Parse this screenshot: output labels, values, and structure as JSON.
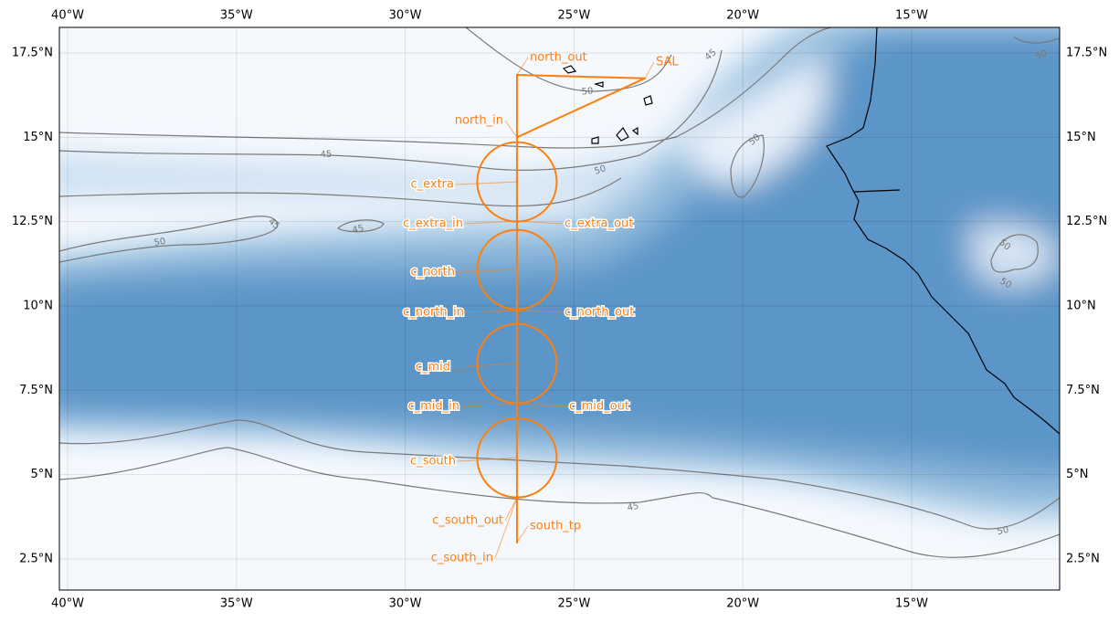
{
  "map": {
    "lon_ticks": [
      {
        "value": -40,
        "label": "40°W"
      },
      {
        "value": -35,
        "label": "35°W"
      },
      {
        "value": -30,
        "label": "30°W"
      },
      {
        "value": -25,
        "label": "25°W"
      },
      {
        "value": -20,
        "label": "20°W"
      },
      {
        "value": -15,
        "label": "15°W"
      }
    ],
    "lat_ticks": [
      {
        "value": 2.5,
        "label": "2.5°N"
      },
      {
        "value": 5,
        "label": "5°N"
      },
      {
        "value": 7.5,
        "label": "7.5°N"
      },
      {
        "value": 10,
        "label": "10°N"
      },
      {
        "value": 12.5,
        "label": "12.5°N"
      },
      {
        "value": 15,
        "label": "15°N"
      },
      {
        "value": 17.5,
        "label": "17.5°N"
      }
    ],
    "contour_labels": [
      45,
      45,
      45,
      50,
      50,
      50,
      45,
      50,
      50,
      50,
      50,
      45,
      50
    ],
    "waypoints": [
      {
        "name": "north_out",
        "lon": -26.69,
        "lat": 16.85
      },
      {
        "name": "SAL",
        "lon": -22.9,
        "lat": 16.75
      },
      {
        "name": "north_in",
        "lon": -26.69,
        "lat": 15.0
      },
      {
        "name": "c_extra",
        "lon": -26.69,
        "lat": 13.68
      },
      {
        "name": "c_extra_in",
        "lon": -26.69,
        "lat": 12.52
      },
      {
        "name": "c_extra_out",
        "lon": -26.69,
        "lat": 12.52
      },
      {
        "name": "c_north",
        "lon": -26.69,
        "lat": 11.08
      },
      {
        "name": "c_north_in",
        "lon": -26.69,
        "lat": 9.86
      },
      {
        "name": "c_north_out",
        "lon": -26.69,
        "lat": 9.86
      },
      {
        "name": "c_mid",
        "lon": -26.69,
        "lat": 8.29
      },
      {
        "name": "c_mid_in",
        "lon": -26.69,
        "lat": 7.1
      },
      {
        "name": "c_mid_out",
        "lon": -26.69,
        "lat": 7.1
      },
      {
        "name": "c_south",
        "lon": -26.69,
        "lat": 5.5
      },
      {
        "name": "c_south_out",
        "lon": -26.69,
        "lat": 4.31
      },
      {
        "name": "south_tp",
        "lon": -26.69,
        "lat": 2.98
      },
      {
        "name": "c_south_in",
        "lon": -26.69,
        "lat": 4.31
      }
    ]
  }
}
